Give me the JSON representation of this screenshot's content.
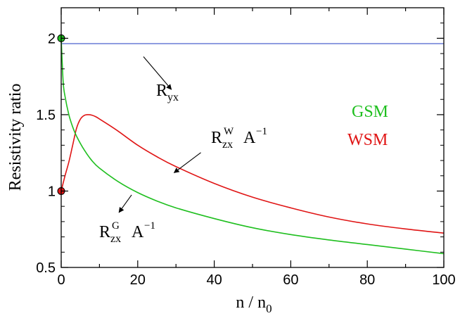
{
  "chart_data": {
    "type": "line",
    "xlabel": {
      "main": "n / n",
      "sub": "0"
    },
    "ylabel": "Resistivity ratio",
    "xlim": [
      0,
      100
    ],
    "ylim": [
      0.5,
      2.2
    ],
    "x_ticks": [
      0,
      20,
      40,
      60,
      80,
      100
    ],
    "x_tick_labels": [
      "0",
      "20",
      "40",
      "60",
      "80",
      "100"
    ],
    "y_ticks": [
      0.5,
      1,
      1.5,
      2
    ],
    "y_tick_labels": [
      "0.5",
      "1",
      "1.5",
      "2"
    ],
    "grid": false,
    "legend": [
      {
        "text": "GSM",
        "color": "#1fbf1f"
      },
      {
        "text": "WSM",
        "color": "#e01515"
      }
    ],
    "series": [
      {
        "color": "#6a7bd6",
        "x": [
          0,
          100
        ],
        "y": [
          1.965,
          1.965
        ]
      },
      {
        "color": "#e01515",
        "x": [
          0,
          1,
          2,
          3,
          4,
          5,
          6,
          7,
          8,
          9,
          10,
          12,
          15,
          20,
          25,
          30,
          40,
          50,
          60,
          70,
          80,
          90,
          100
        ],
        "y": [
          1.0,
          1.1,
          1.19,
          1.3,
          1.41,
          1.47,
          1.495,
          1.5,
          1.497,
          1.487,
          1.472,
          1.44,
          1.39,
          1.3,
          1.225,
          1.16,
          1.05,
          0.96,
          0.89,
          0.83,
          0.785,
          0.752,
          0.725
        ]
      },
      {
        "color": "#1fbf1f",
        "x": [
          0,
          0.5,
          1,
          2,
          3,
          4,
          6,
          8,
          10,
          15,
          20,
          25,
          30,
          40,
          50,
          60,
          70,
          80,
          90,
          100
        ],
        "y": [
          2.0,
          1.72,
          1.62,
          1.5,
          1.42,
          1.36,
          1.27,
          1.2,
          1.15,
          1.06,
          0.99,
          0.935,
          0.89,
          0.82,
          0.76,
          0.715,
          0.68,
          0.65,
          0.62,
          0.59
        ]
      }
    ],
    "markers": [
      {
        "x": 0,
        "y": 2.0,
        "color": "#1fbf1f"
      },
      {
        "x": 0,
        "y": 1.0,
        "color": "#e01515"
      }
    ],
    "annotations": [
      {
        "base": "R",
        "sub": "yx",
        "sup": "",
        "suffix": "",
        "arrow_from": [
          21.5,
          1.88
        ],
        "arrow_to": [
          28.8,
          1.665
        ]
      },
      {
        "base": "R",
        "sub": "zx",
        "sup": "W",
        "suffix": "A",
        "suffix_sup": "−1",
        "arrow_from": [
          36.5,
          1.252
        ],
        "arrow_to": [
          29.5,
          1.12
        ]
      },
      {
        "base": "R",
        "sub": "zx",
        "sup": "G",
        "suffix": "A",
        "suffix_sup": "−1",
        "arrow_from": [
          18.4,
          0.975
        ],
        "arrow_to": [
          15.1,
          0.86
        ]
      }
    ]
  }
}
